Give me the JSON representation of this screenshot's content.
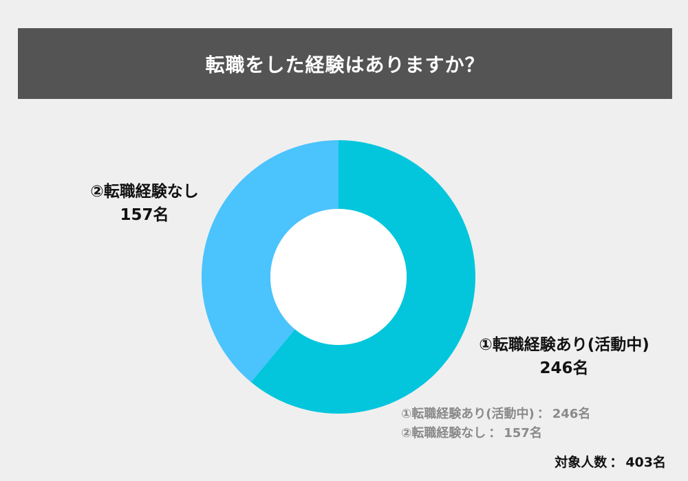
{
  "title": "転職をした経験はありますか？",
  "chart_data": {
    "type": "pie",
    "donut": true,
    "categories": [
      "①転職経験あり(活動中)",
      "②転職経験なし"
    ],
    "values": [
      246,
      157
    ],
    "unit": "名",
    "colors": [
      "#03c6dc",
      "#4bc3fd"
    ],
    "slice_labels": [
      {
        "name": "①転職経験あり(活動中)",
        "value": "246名"
      },
      {
        "name": "②転職経験なし",
        "value": "157名"
      }
    ],
    "legend": [
      {
        "name": "①転職経験あり(活動中)",
        "value": "246名"
      },
      {
        "name": "②転職経験なし",
        "value": "157名"
      }
    ]
  },
  "legend_separator": "：",
  "total": {
    "label": "対象人数",
    "separator": "：",
    "value": "403名"
  }
}
